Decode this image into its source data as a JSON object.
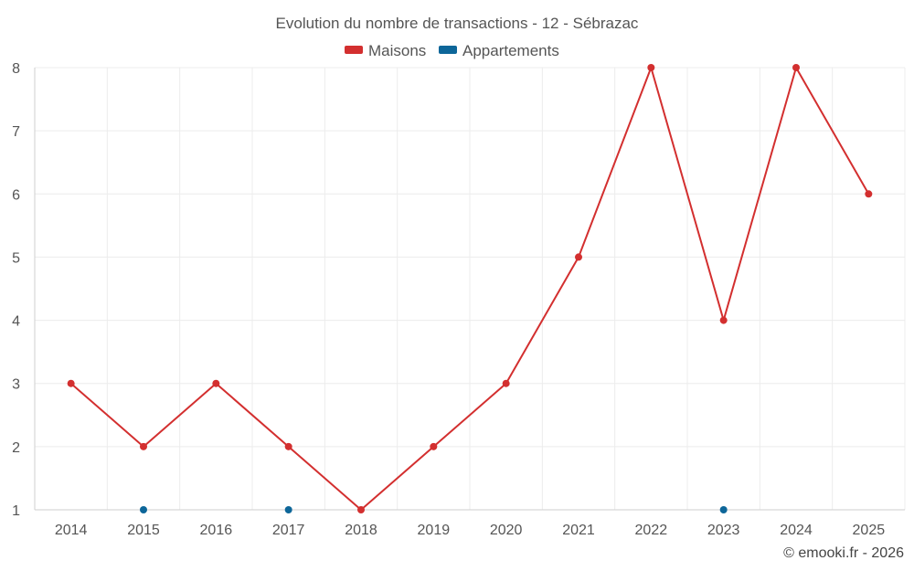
{
  "chart_data": {
    "type": "line",
    "title": "Evolution du nombre de transactions - 12 - Sébrazac",
    "xlabel": "",
    "ylabel": "",
    "categories": [
      "2014",
      "2015",
      "2016",
      "2017",
      "2018",
      "2019",
      "2020",
      "2021",
      "2022",
      "2023",
      "2024",
      "2025"
    ],
    "ylim": [
      1,
      8
    ],
    "yticks": [
      "1",
      "2",
      "3",
      "4",
      "5",
      "6",
      "7",
      "8"
    ],
    "grid": true,
    "legend_position": "top-center",
    "series": [
      {
        "name": "Maisons",
        "color": "#d32f2f",
        "values": [
          3,
          2,
          3,
          2,
          1,
          2,
          3,
          5,
          8,
          4,
          8,
          6
        ]
      },
      {
        "name": "Appartements",
        "color": "#0d6699",
        "values": [
          null,
          1,
          null,
          1,
          null,
          null,
          null,
          null,
          null,
          1,
          null,
          null
        ]
      }
    ]
  },
  "credit": "© emooki.fr - 2026"
}
